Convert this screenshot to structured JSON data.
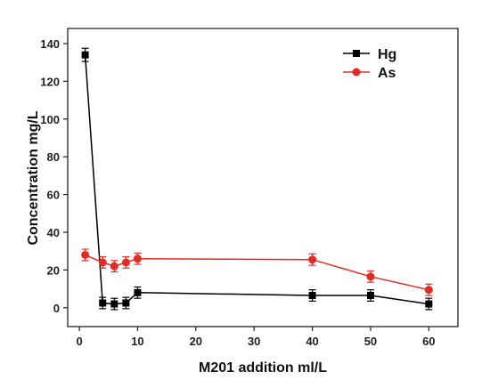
{
  "chart_data": {
    "type": "line",
    "title": "",
    "xlabel": "M201 addition ml/L",
    "ylabel": "Concentration  mg/L",
    "xlim": [
      -2,
      65
    ],
    "ylim": [
      -10,
      148
    ],
    "xticks": [
      0,
      10,
      20,
      30,
      40,
      50,
      60
    ],
    "yticks": [
      0,
      20,
      40,
      60,
      80,
      100,
      120,
      140
    ],
    "grid": false,
    "legend_position": "top-right",
    "series": [
      {
        "name": "Hg",
        "color": "#000000",
        "marker": "square",
        "x": [
          1,
          4,
          6,
          8,
          10,
          40,
          50,
          60
        ],
        "y": [
          134,
          2.5,
          2,
          2.5,
          8,
          6.5,
          6.5,
          2
        ],
        "error": [
          3.5,
          3,
          3,
          3,
          3,
          3,
          3,
          3
        ]
      },
      {
        "name": "As",
        "color": "#e32b24",
        "marker": "circle",
        "x": [
          1,
          4,
          6,
          8,
          10,
          40,
          50,
          60
        ],
        "y": [
          28,
          24,
          22,
          24,
          26,
          25.5,
          16.5,
          9.5
        ],
        "error": [
          3,
          3,
          3,
          3,
          3,
          3,
          3,
          3
        ]
      }
    ]
  }
}
